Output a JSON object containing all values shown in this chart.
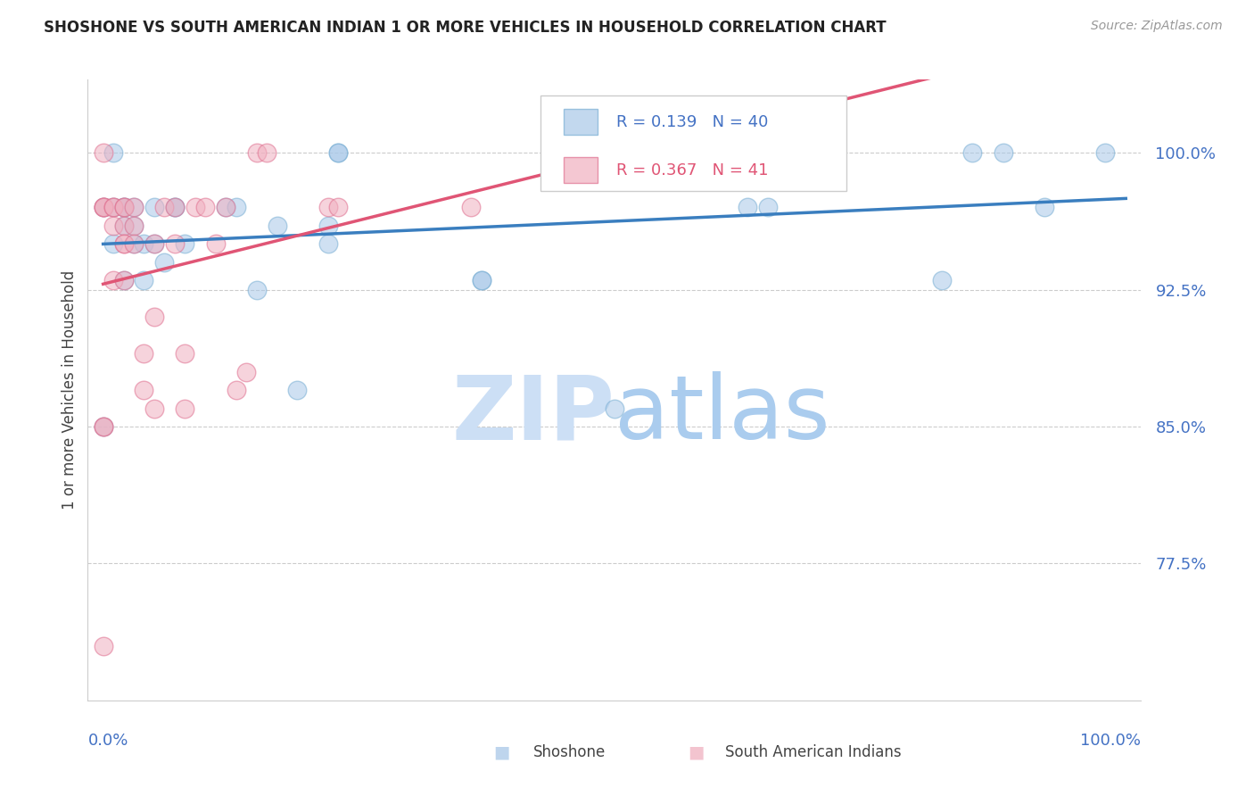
{
  "title": "SHOSHONE VS SOUTH AMERICAN INDIAN 1 OR MORE VEHICLES IN HOUSEHOLD CORRELATION CHART",
  "source": "Source: ZipAtlas.com",
  "ylabel": "1 or more Vehicles in Household",
  "legend_label1": "Shoshone",
  "legend_label2": "South American Indians",
  "R1": 0.139,
  "N1": 40,
  "R2": 0.367,
  "N2": 41,
  "color_blue": "#a8c8e8",
  "color_blue_edge": "#7aafd4",
  "color_pink": "#f0b0c0",
  "color_pink_edge": "#e07090",
  "color_blue_line": "#3a7ebf",
  "color_pink_line": "#e05575",
  "color_axis_labels": "#4472c4",
  "watermark_zip": "#c8dff0",
  "watermark_atlas": "#c8dff0",
  "ylim_min": 0.7,
  "ylim_max": 1.04,
  "xlim_min": -0.015,
  "xlim_max": 1.015,
  "yticks": [
    0.775,
    0.85,
    0.925,
    1.0
  ],
  "ytick_labels": [
    "77.5%",
    "85.0%",
    "92.5%",
    "100.0%"
  ],
  "shoshone_x": [
    0.0,
    0.0,
    0.01,
    0.01,
    0.01,
    0.02,
    0.02,
    0.02,
    0.02,
    0.03,
    0.03,
    0.03,
    0.04,
    0.04,
    0.05,
    0.05,
    0.06,
    0.07,
    0.07,
    0.08,
    0.12,
    0.13,
    0.15,
    0.17,
    0.19,
    0.22,
    0.22,
    0.23,
    0.23,
    0.37,
    0.37,
    0.5,
    0.57,
    0.63,
    0.65,
    0.82,
    0.85,
    0.88,
    0.92,
    0.98
  ],
  "shoshone_y": [
    0.85,
    0.97,
    0.97,
    1.0,
    0.95,
    0.97,
    0.97,
    0.96,
    0.93,
    0.97,
    0.96,
    0.95,
    0.95,
    0.93,
    0.95,
    0.97,
    0.94,
    0.97,
    0.97,
    0.95,
    0.97,
    0.97,
    0.925,
    0.96,
    0.87,
    0.96,
    0.95,
    1.0,
    1.0,
    0.93,
    0.93,
    0.86,
    1.0,
    0.97,
    0.97,
    0.93,
    1.0,
    1.0,
    0.97,
    1.0
  ],
  "sa_x": [
    0.0,
    0.0,
    0.0,
    0.0,
    0.0,
    0.0,
    0.0,
    0.01,
    0.01,
    0.01,
    0.01,
    0.02,
    0.02,
    0.02,
    0.02,
    0.02,
    0.02,
    0.03,
    0.03,
    0.03,
    0.04,
    0.04,
    0.05,
    0.05,
    0.05,
    0.06,
    0.07,
    0.07,
    0.08,
    0.08,
    0.09,
    0.1,
    0.11,
    0.12,
    0.13,
    0.14,
    0.15,
    0.16,
    0.22,
    0.23,
    0.36
  ],
  "sa_y": [
    0.73,
    0.85,
    0.85,
    0.97,
    0.97,
    0.97,
    1.0,
    0.97,
    0.97,
    0.96,
    0.93,
    0.97,
    0.97,
    0.96,
    0.95,
    0.95,
    0.93,
    0.97,
    0.96,
    0.95,
    0.89,
    0.87,
    0.95,
    0.91,
    0.86,
    0.97,
    0.97,
    0.95,
    0.89,
    0.86,
    0.97,
    0.97,
    0.95,
    0.97,
    0.87,
    0.88,
    1.0,
    1.0,
    0.97,
    0.97,
    0.97
  ]
}
